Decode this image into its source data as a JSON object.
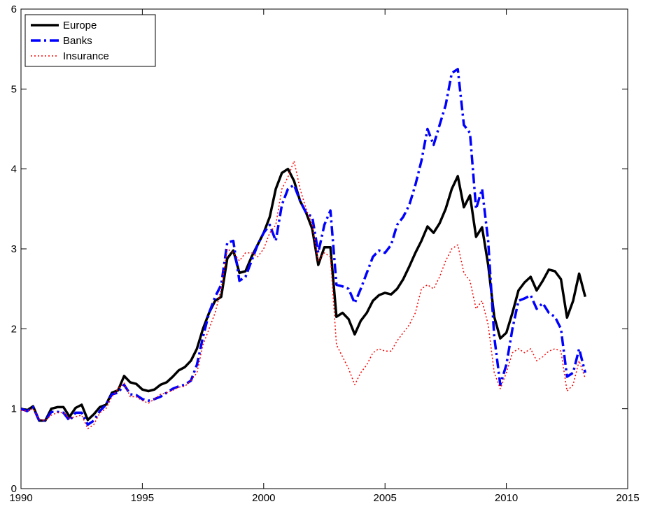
{
  "chart_data": {
    "type": "line",
    "x": [
      1990,
      1990.25,
      1990.5,
      1990.75,
      1991,
      1991.25,
      1991.5,
      1991.75,
      1992,
      1992.25,
      1992.5,
      1992.75,
      1993,
      1993.25,
      1993.5,
      1993.75,
      1994,
      1994.25,
      1994.5,
      1994.75,
      1995,
      1995.25,
      1995.5,
      1995.75,
      1996,
      1996.25,
      1996.5,
      1996.75,
      1997,
      1997.25,
      1997.5,
      1997.75,
      1998,
      1998.25,
      1998.5,
      1998.75,
      1999,
      1999.25,
      1999.5,
      1999.75,
      2000,
      2000.25,
      2000.5,
      2000.75,
      2001,
      2001.25,
      2001.5,
      2001.75,
      2002,
      2002.25,
      2002.5,
      2002.75,
      2003,
      2003.25,
      2003.5,
      2003.75,
      2004,
      2004.25,
      2004.5,
      2004.75,
      2005,
      2005.25,
      2005.5,
      2005.75,
      2006,
      2006.25,
      2006.5,
      2006.75,
      2007,
      2007.25,
      2007.5,
      2007.75,
      2008,
      2008.25,
      2008.5,
      2008.75,
      2009,
      2009.25,
      2009.5,
      2009.75,
      2010,
      2010.25,
      2010.5,
      2010.75,
      2011,
      2011.25,
      2011.5,
      2011.75,
      2012,
      2012.25,
      2012.5,
      2012.75,
      2013,
      2013.25
    ],
    "series": [
      {
        "name": "Europe",
        "color": "#000000",
        "style": "solid",
        "values": [
          1.0,
          0.98,
          1.03,
          0.85,
          0.85,
          1.0,
          1.02,
          1.02,
          0.9,
          1.01,
          1.05,
          0.86,
          0.93,
          1.02,
          1.05,
          1.2,
          1.23,
          1.41,
          1.33,
          1.31,
          1.24,
          1.22,
          1.24,
          1.3,
          1.33,
          1.4,
          1.48,
          1.52,
          1.6,
          1.75,
          2.0,
          2.2,
          2.35,
          2.4,
          2.88,
          2.98,
          2.7,
          2.72,
          2.9,
          3.05,
          3.2,
          3.4,
          3.75,
          3.95,
          4.0,
          3.85,
          3.6,
          3.45,
          3.25,
          2.8,
          3.02,
          3.02,
          2.15,
          2.2,
          2.12,
          1.93,
          2.1,
          2.2,
          2.35,
          2.42,
          2.45,
          2.43,
          2.5,
          2.62,
          2.78,
          2.95,
          3.1,
          3.28,
          3.2,
          3.32,
          3.5,
          3.75,
          3.91,
          3.52,
          3.67,
          3.15,
          3.27,
          2.8,
          2.15,
          1.88,
          1.95,
          2.2,
          2.48,
          2.58,
          2.65,
          2.48,
          2.6,
          2.74,
          2.72,
          2.62,
          2.14,
          2.35,
          2.69,
          2.4
        ]
      },
      {
        "name": "Banks",
        "color": "#0000ff",
        "style": "dashdot",
        "values": [
          1.0,
          0.97,
          1.02,
          0.85,
          0.85,
          0.96,
          0.96,
          0.95,
          0.85,
          0.95,
          0.95,
          0.8,
          0.85,
          0.97,
          1.05,
          1.18,
          1.2,
          1.3,
          1.18,
          1.17,
          1.12,
          1.1,
          1.12,
          1.15,
          1.2,
          1.25,
          1.28,
          1.3,
          1.35,
          1.55,
          1.9,
          2.2,
          2.4,
          2.55,
          3.08,
          3.1,
          2.6,
          2.65,
          2.85,
          3.05,
          3.2,
          3.3,
          3.1,
          3.55,
          3.75,
          3.8,
          3.6,
          3.45,
          3.4,
          2.95,
          3.3,
          3.48,
          2.55,
          2.53,
          2.5,
          2.32,
          2.5,
          2.7,
          2.9,
          2.98,
          2.95,
          3.05,
          3.3,
          3.4,
          3.55,
          3.8,
          4.1,
          4.5,
          4.3,
          4.55,
          4.8,
          5.2,
          5.25,
          4.55,
          4.45,
          3.5,
          3.75,
          3.1,
          1.9,
          1.3,
          1.55,
          2.0,
          2.35,
          2.38,
          2.42,
          2.25,
          2.32,
          2.2,
          2.15,
          2.0,
          1.4,
          1.45,
          1.75,
          1.45
        ]
      },
      {
        "name": "Insurance",
        "color": "#ff0000",
        "style": "dotted",
        "values": [
          0.98,
          0.97,
          1.0,
          0.87,
          0.85,
          0.92,
          0.95,
          0.95,
          0.88,
          0.9,
          0.92,
          0.75,
          0.8,
          0.95,
          1.0,
          1.15,
          1.25,
          1.32,
          1.15,
          1.15,
          1.1,
          1.07,
          1.12,
          1.18,
          1.2,
          1.23,
          1.27,
          1.28,
          1.35,
          1.45,
          1.8,
          2.0,
          2.2,
          2.5,
          3.0,
          2.95,
          2.85,
          2.95,
          2.95,
          2.9,
          3.0,
          3.2,
          3.3,
          3.75,
          3.9,
          4.1,
          3.75,
          3.5,
          3.3,
          2.85,
          2.95,
          2.9,
          1.8,
          1.65,
          1.5,
          1.3,
          1.45,
          1.55,
          1.7,
          1.75,
          1.72,
          1.72,
          1.85,
          1.95,
          2.05,
          2.2,
          2.5,
          2.55,
          2.5,
          2.65,
          2.85,
          3.0,
          3.05,
          2.7,
          2.6,
          2.25,
          2.35,
          2.05,
          1.45,
          1.25,
          1.45,
          1.7,
          1.75,
          1.7,
          1.75,
          1.6,
          1.65,
          1.72,
          1.75,
          1.72,
          1.22,
          1.3,
          1.6,
          1.38
        ]
      }
    ],
    "xlim": [
      1990,
      2015
    ],
    "xticks": [
      1990,
      1995,
      2000,
      2005,
      2010,
      2015
    ],
    "ylim": [
      0,
      6
    ],
    "yticks": [
      0,
      1,
      2,
      3,
      4,
      5,
      6
    ],
    "legend": "upper-left"
  }
}
